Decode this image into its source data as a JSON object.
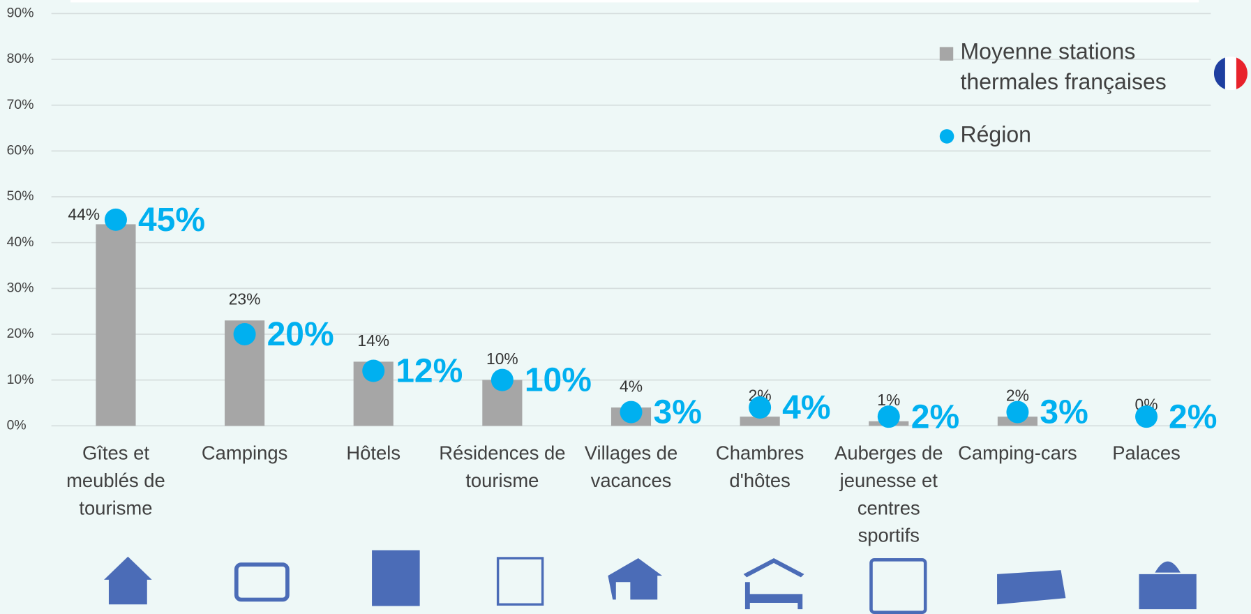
{
  "chart_data": {
    "type": "bar",
    "categories": [
      "Gîtes et meublés de tourisme",
      "Campings",
      "Hôtels",
      "Résidences de tourisme",
      "Villages de vacances",
      "Chambres d'hôtes",
      "Auberges de jeunesse et centres sportifs",
      "Camping-cars",
      "Palaces"
    ],
    "series": [
      {
        "name": "Moyenne stations thermales françaises",
        "type": "bar",
        "color": "#a6a6a6",
        "values": [
          44,
          23,
          14,
          10,
          4,
          2,
          1,
          2,
          0
        ],
        "value_labels": [
          "44%",
          "23%",
          "14%",
          "10%",
          "4%",
          "2%",
          "1%",
          "2%",
          "0%"
        ]
      },
      {
        "name": "Région",
        "type": "scatter",
        "color": "#00b0f0",
        "values": [
          45,
          20,
          12,
          10,
          3,
          4,
          2,
          3,
          2
        ],
        "value_labels": [
          "45%",
          "20%",
          "12%",
          "10%",
          "3%",
          "4%",
          "2%",
          "3%",
          "2%"
        ]
      }
    ],
    "ylim": [
      0,
      90
    ],
    "yticks": [
      {
        "value": 0,
        "label": "0%"
      },
      {
        "value": 10,
        "label": "10%"
      },
      {
        "value": 20,
        "label": "20%"
      },
      {
        "value": 30,
        "label": "30%"
      },
      {
        "value": 40,
        "label": "40%"
      },
      {
        "value": 50,
        "label": "50%"
      },
      {
        "value": 60,
        "label": "60%"
      },
      {
        "value": 70,
        "label": "70%"
      },
      {
        "value": 80,
        "label": "80%"
      },
      {
        "value": 90,
        "label": "90%"
      }
    ],
    "grid": true,
    "legend": "top-right"
  }
}
